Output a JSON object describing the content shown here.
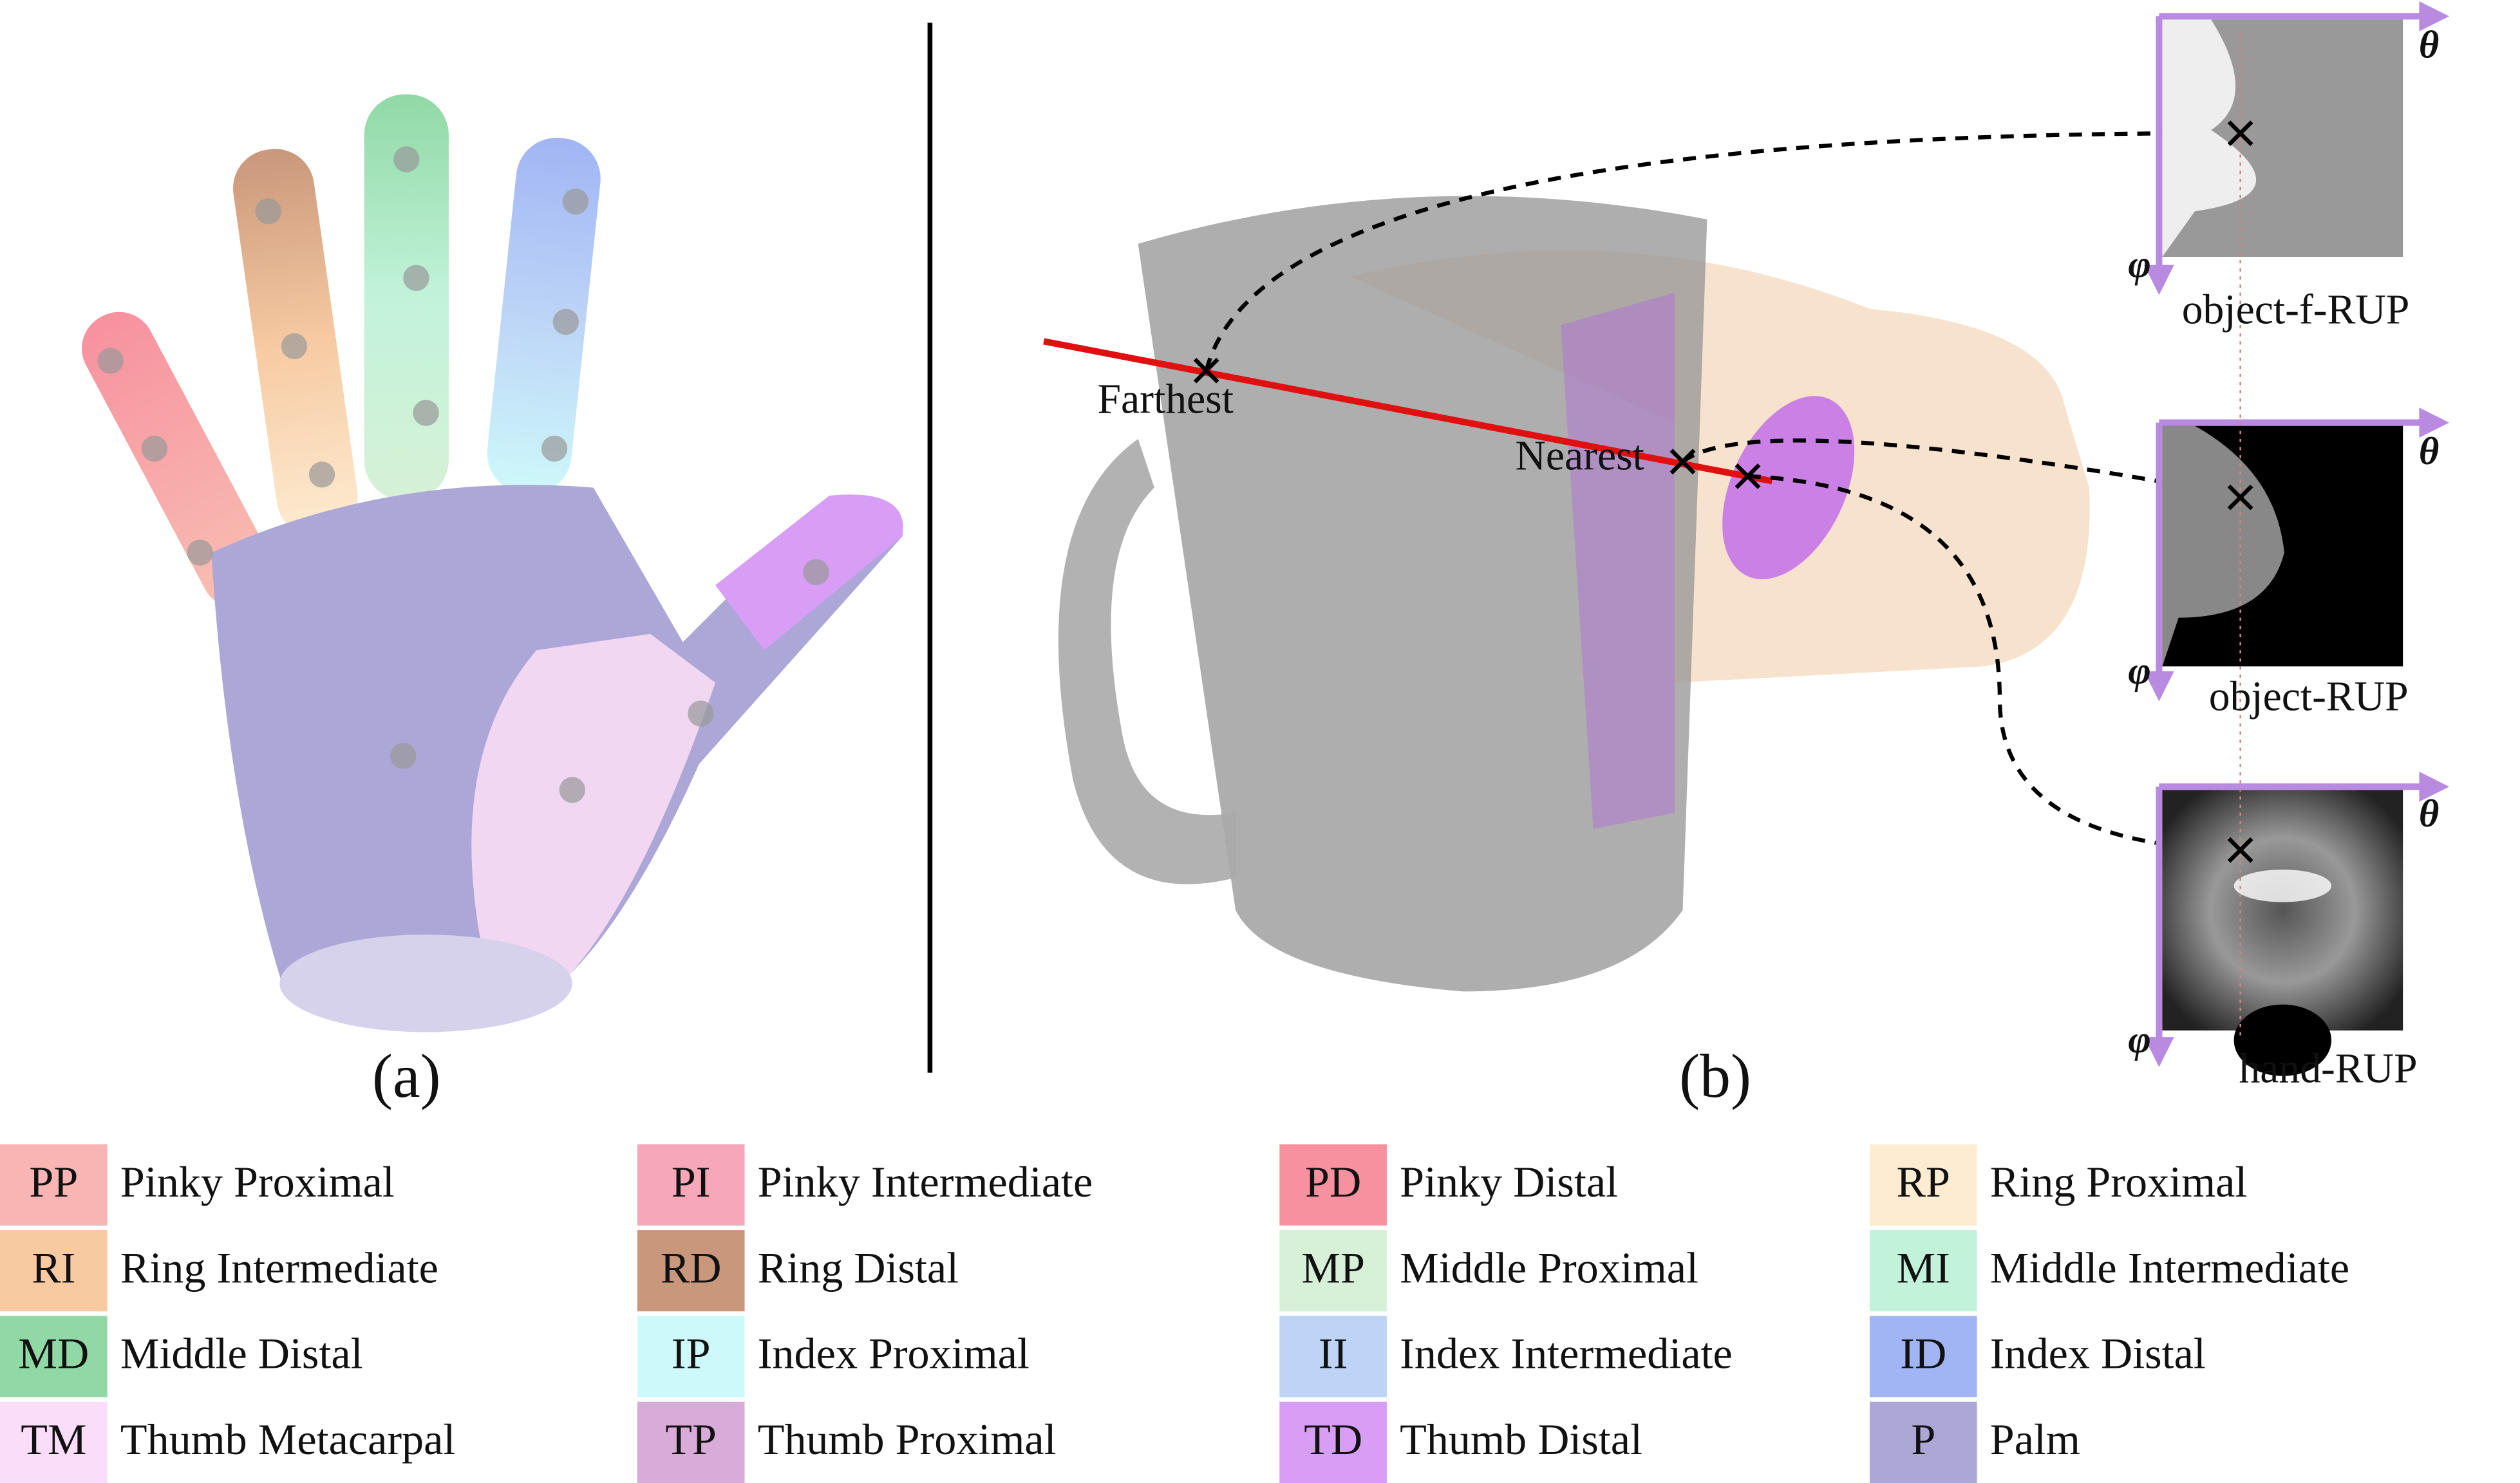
{
  "panels": {
    "a": {
      "label": "(a)"
    },
    "b": {
      "label": "(b)",
      "farthest": "Farthest",
      "nearest": "Nearest",
      "maps": [
        {
          "title": "object-f-RUP",
          "theta": "θ",
          "phi": "φ"
        },
        {
          "title": "object-RUP",
          "theta": "θ",
          "phi": "φ"
        },
        {
          "title": "hand-RUP",
          "theta": "θ",
          "phi": "φ"
        }
      ]
    }
  },
  "legend": [
    {
      "abbr": "PP",
      "name": "Pinky Proximal",
      "color": "#f9b5b3"
    },
    {
      "abbr": "PI",
      "name": "Pinky Intermediate",
      "color": "#f7a8b8"
    },
    {
      "abbr": "PD",
      "name": "Pinky Distal",
      "color": "#f7919f"
    },
    {
      "abbr": "RP",
      "name": "Ring Proximal",
      "color": "#fdecd2"
    },
    {
      "abbr": "RI",
      "name": "Ring Intermediate",
      "color": "#f7caa2"
    },
    {
      "abbr": "RD",
      "name": "Ring Distal",
      "color": "#c9977b"
    },
    {
      "abbr": "MP",
      "name": "Middle Proximal",
      "color": "#d6f1d7"
    },
    {
      "abbr": "MI",
      "name": "Middle Intermediate",
      "color": "#c2f3da"
    },
    {
      "abbr": "MD",
      "name": "Middle Distal",
      "color": "#90d9a5"
    },
    {
      "abbr": "IP",
      "name": "Index Proximal",
      "color": "#cef9fa"
    },
    {
      "abbr": "II",
      "name": "Index Intermediate",
      "color": "#bdd4f7"
    },
    {
      "abbr": "ID",
      "name": "Index Distal",
      "color": "#a1b5f4"
    },
    {
      "abbr": "TM",
      "name": "Thumb Metacarpal",
      "color": "#f9ddf9"
    },
    {
      "abbr": "TP",
      "name": "Thumb Proximal",
      "color": "#d9abd9"
    },
    {
      "abbr": "TD",
      "name": "Thumb Distal",
      "color": "#d89df5"
    },
    {
      "abbr": "P",
      "name": "Palm",
      "color": "#ada7d7"
    }
  ]
}
